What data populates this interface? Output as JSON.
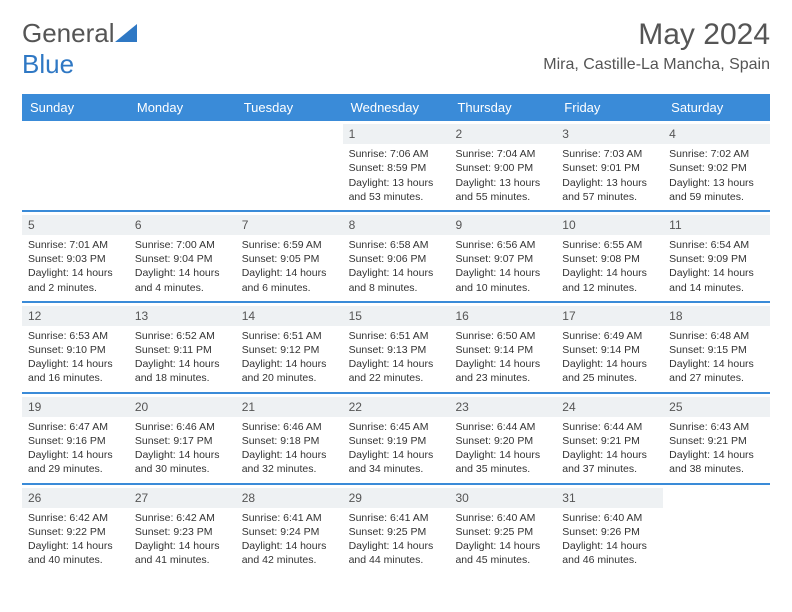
{
  "brand": {
    "name_a": "General",
    "name_b": "Blue"
  },
  "title": "May 2024",
  "location": "Mira, Castille-La Mancha, Spain",
  "accent_color": "#3a8bd8",
  "daynum_bg": "#eef1f3",
  "dow": [
    "Sunday",
    "Monday",
    "Tuesday",
    "Wednesday",
    "Thursday",
    "Friday",
    "Saturday"
  ],
  "weeks": [
    [
      null,
      null,
      null,
      {
        "n": "1",
        "sr": "7:06 AM",
        "ss": "8:59 PM",
        "dl": "13 hours and 53 minutes."
      },
      {
        "n": "2",
        "sr": "7:04 AM",
        "ss": "9:00 PM",
        "dl": "13 hours and 55 minutes."
      },
      {
        "n": "3",
        "sr": "7:03 AM",
        "ss": "9:01 PM",
        "dl": "13 hours and 57 minutes."
      },
      {
        "n": "4",
        "sr": "7:02 AM",
        "ss": "9:02 PM",
        "dl": "13 hours and 59 minutes."
      }
    ],
    [
      {
        "n": "5",
        "sr": "7:01 AM",
        "ss": "9:03 PM",
        "dl": "14 hours and 2 minutes."
      },
      {
        "n": "6",
        "sr": "7:00 AM",
        "ss": "9:04 PM",
        "dl": "14 hours and 4 minutes."
      },
      {
        "n": "7",
        "sr": "6:59 AM",
        "ss": "9:05 PM",
        "dl": "14 hours and 6 minutes."
      },
      {
        "n": "8",
        "sr": "6:58 AM",
        "ss": "9:06 PM",
        "dl": "14 hours and 8 minutes."
      },
      {
        "n": "9",
        "sr": "6:56 AM",
        "ss": "9:07 PM",
        "dl": "14 hours and 10 minutes."
      },
      {
        "n": "10",
        "sr": "6:55 AM",
        "ss": "9:08 PM",
        "dl": "14 hours and 12 minutes."
      },
      {
        "n": "11",
        "sr": "6:54 AM",
        "ss": "9:09 PM",
        "dl": "14 hours and 14 minutes."
      }
    ],
    [
      {
        "n": "12",
        "sr": "6:53 AM",
        "ss": "9:10 PM",
        "dl": "14 hours and 16 minutes."
      },
      {
        "n": "13",
        "sr": "6:52 AM",
        "ss": "9:11 PM",
        "dl": "14 hours and 18 minutes."
      },
      {
        "n": "14",
        "sr": "6:51 AM",
        "ss": "9:12 PM",
        "dl": "14 hours and 20 minutes."
      },
      {
        "n": "15",
        "sr": "6:51 AM",
        "ss": "9:13 PM",
        "dl": "14 hours and 22 minutes."
      },
      {
        "n": "16",
        "sr": "6:50 AM",
        "ss": "9:14 PM",
        "dl": "14 hours and 23 minutes."
      },
      {
        "n": "17",
        "sr": "6:49 AM",
        "ss": "9:14 PM",
        "dl": "14 hours and 25 minutes."
      },
      {
        "n": "18",
        "sr": "6:48 AM",
        "ss": "9:15 PM",
        "dl": "14 hours and 27 minutes."
      }
    ],
    [
      {
        "n": "19",
        "sr": "6:47 AM",
        "ss": "9:16 PM",
        "dl": "14 hours and 29 minutes."
      },
      {
        "n": "20",
        "sr": "6:46 AM",
        "ss": "9:17 PM",
        "dl": "14 hours and 30 minutes."
      },
      {
        "n": "21",
        "sr": "6:46 AM",
        "ss": "9:18 PM",
        "dl": "14 hours and 32 minutes."
      },
      {
        "n": "22",
        "sr": "6:45 AM",
        "ss": "9:19 PM",
        "dl": "14 hours and 34 minutes."
      },
      {
        "n": "23",
        "sr": "6:44 AM",
        "ss": "9:20 PM",
        "dl": "14 hours and 35 minutes."
      },
      {
        "n": "24",
        "sr": "6:44 AM",
        "ss": "9:21 PM",
        "dl": "14 hours and 37 minutes."
      },
      {
        "n": "25",
        "sr": "6:43 AM",
        "ss": "9:21 PM",
        "dl": "14 hours and 38 minutes."
      }
    ],
    [
      {
        "n": "26",
        "sr": "6:42 AM",
        "ss": "9:22 PM",
        "dl": "14 hours and 40 minutes."
      },
      {
        "n": "27",
        "sr": "6:42 AM",
        "ss": "9:23 PM",
        "dl": "14 hours and 41 minutes."
      },
      {
        "n": "28",
        "sr": "6:41 AM",
        "ss": "9:24 PM",
        "dl": "14 hours and 42 minutes."
      },
      {
        "n": "29",
        "sr": "6:41 AM",
        "ss": "9:25 PM",
        "dl": "14 hours and 44 minutes."
      },
      {
        "n": "30",
        "sr": "6:40 AM",
        "ss": "9:25 PM",
        "dl": "14 hours and 45 minutes."
      },
      {
        "n": "31",
        "sr": "6:40 AM",
        "ss": "9:26 PM",
        "dl": "14 hours and 46 minutes."
      },
      null
    ]
  ],
  "labels": {
    "sunrise": "Sunrise:",
    "sunset": "Sunset:",
    "daylight": "Daylight:"
  }
}
